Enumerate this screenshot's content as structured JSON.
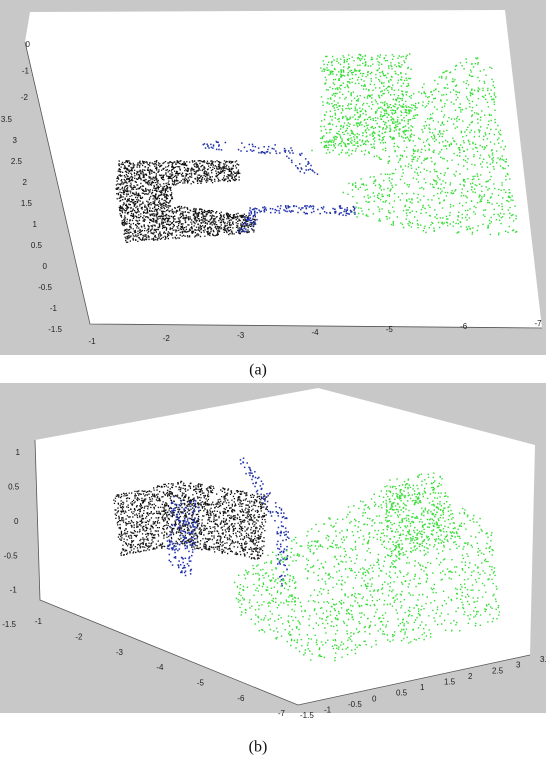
{
  "figures": [
    {
      "caption": "(a)",
      "top_ticks": [
        "0",
        "-1",
        "-2"
      ],
      "z_ticks": [
        "3.5",
        "3",
        "2.5",
        "2",
        "1.5",
        "1",
        "0.5",
        "0",
        "-0.5",
        "-1",
        "-1.5"
      ],
      "x_ticks": [
        "-1",
        "-2",
        "-3",
        "-4",
        "-5",
        "-6",
        "-7"
      ]
    },
    {
      "caption": "(b)",
      "z_ticks": [
        "1",
        "0.5",
        "0",
        "-0.5",
        "-1",
        "-1.5"
      ],
      "x_ticks": [
        "-1",
        "-2",
        "-3",
        "-4",
        "-5",
        "-6",
        "-7"
      ],
      "y_ticks": [
        "-1.5",
        "-1",
        "-0.5",
        "0",
        "0.5",
        "1",
        "1.5",
        "2",
        "2.5",
        "3",
        "3.5"
      ]
    }
  ]
}
